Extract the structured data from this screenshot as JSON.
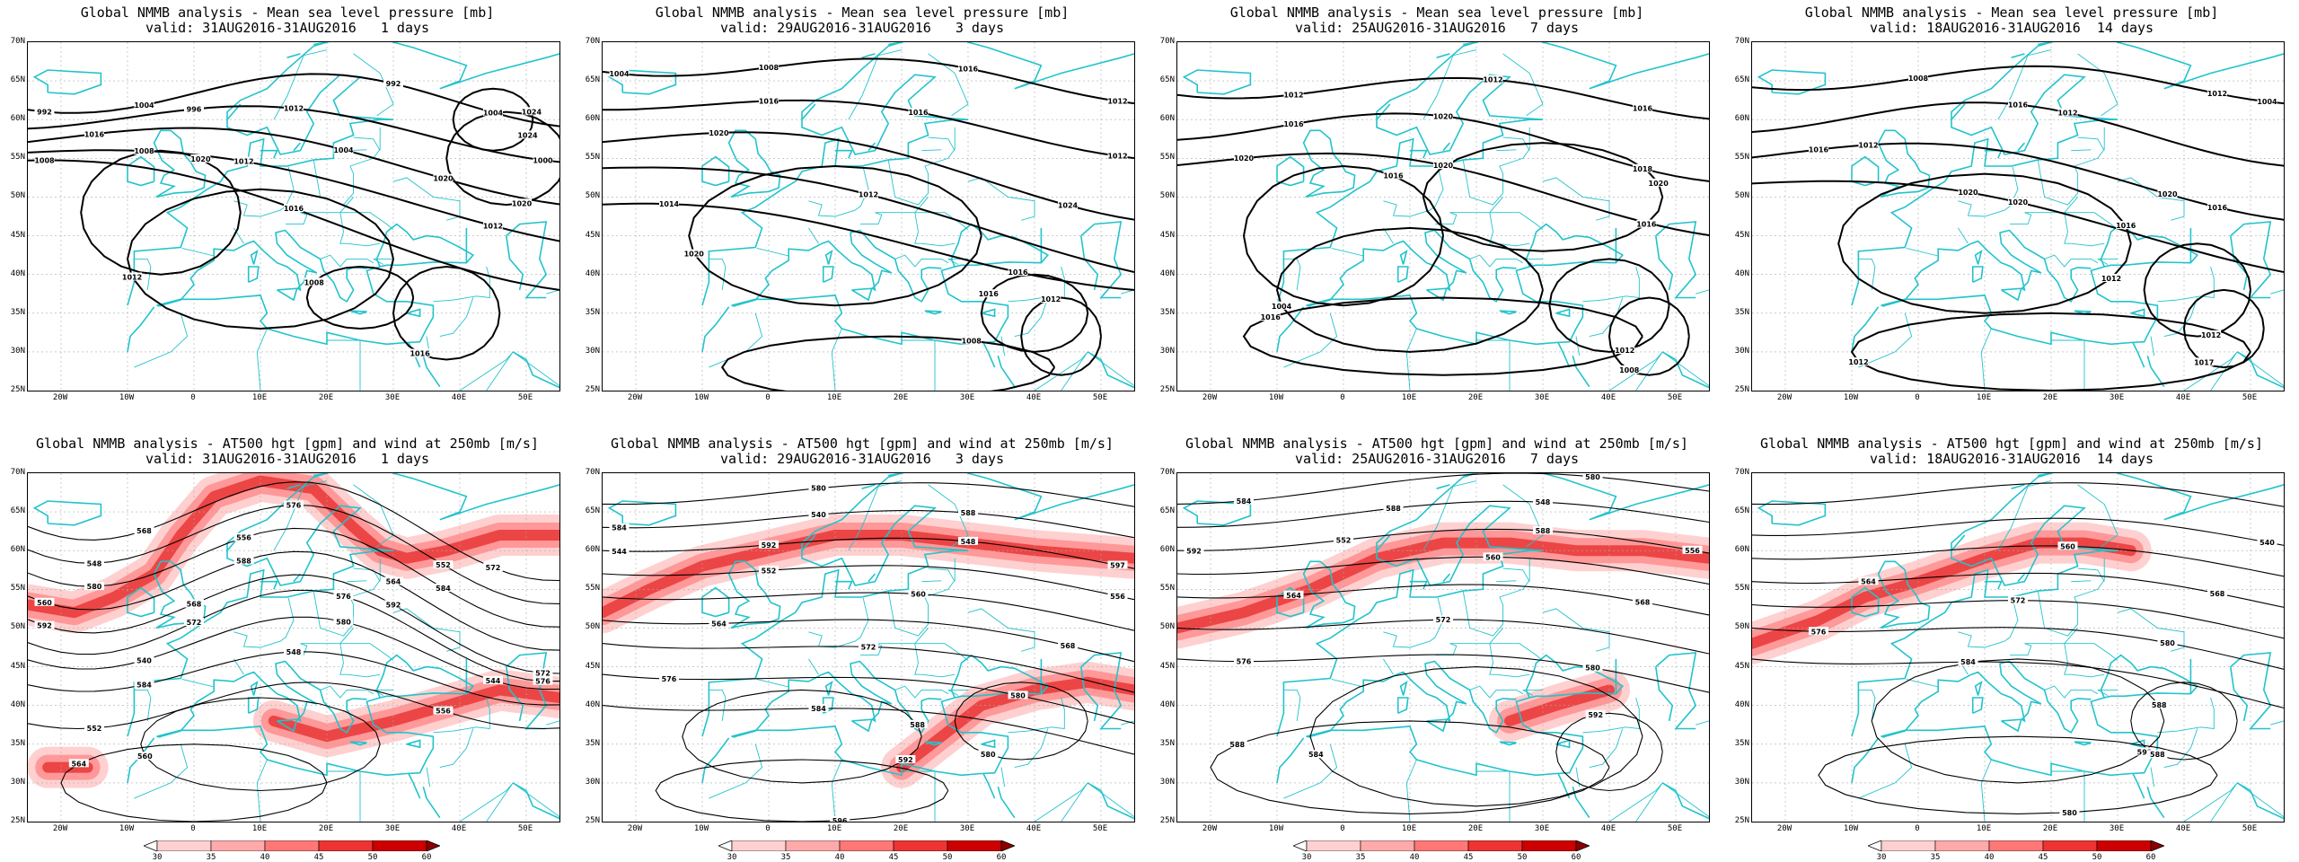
{
  "panels": [
    {
      "title": "Global NMMB analysis - Mean sea level pressure [mb]",
      "subtitle": "valid: 31AUG2016-31AUG2016   1 days",
      "field": "mslp",
      "contour_labels": [
        "992",
        "992",
        "996",
        "1000",
        "1004",
        "1008",
        "1012",
        "1016",
        "1020",
        "1024",
        "1024",
        "1020",
        "1016",
        "1012",
        "1008",
        "1004",
        "1004",
        "1012",
        "1016",
        "1020",
        "1012",
        "1008"
      ]
    },
    {
      "title": "Global NMMB analysis - Mean sea level pressure [mb]",
      "subtitle": "valid: 29AUG2016-31AUG2016   3 days",
      "field": "mslp",
      "contour_labels": [
        "1008",
        "1012",
        "1016",
        "1020",
        "1024",
        "1012",
        "1014",
        "1016",
        "1020",
        "1016",
        "1012",
        "1008",
        "1004",
        "1016",
        "1016",
        "1012"
      ]
    },
    {
      "title": "Global NMMB analysis - Mean sea level pressure [mb]",
      "subtitle": "valid: 25AUG2016-31AUG2016   7 days",
      "field": "mslp",
      "contour_labels": [
        "1012",
        "1016",
        "1018",
        "1020",
        "1016",
        "1020",
        "1016",
        "1012",
        "1008",
        "1004",
        "1016",
        "1012",
        "1016",
        "1020",
        "1020"
      ]
    },
    {
      "title": "Global NMMB analysis - Mean sea level pressure [mb]",
      "subtitle": "valid: 18AUG2016-31AUG2016  14 days",
      "field": "mslp",
      "contour_labels": [
        "1012",
        "1016",
        "1016",
        "1020",
        "1020",
        "1016",
        "1012",
        "1012",
        "1017",
        "1012",
        "1008",
        "1004",
        "1012",
        "1012",
        "1016",
        "1020"
      ]
    },
    {
      "title": "Global NMMB analysis - AT500 hgt [gpm] and wind at 250mb [m/s]",
      "subtitle": "valid: 31AUG2016-31AUG2016   1 days",
      "field": "h500",
      "contour_labels": [
        "548",
        "552",
        "556",
        "560",
        "564",
        "568",
        "572",
        "576",
        "540",
        "544",
        "548",
        "552",
        "556",
        "560",
        "564",
        "568",
        "572",
        "576",
        "580",
        "584",
        "588",
        "592",
        "592",
        "572",
        "576",
        "580",
        "584"
      ]
    },
    {
      "title": "Global NMMB analysis - AT500 hgt [gpm] and wind at 250mb [m/s]",
      "subtitle": "valid: 29AUG2016-31AUG2016   3 days",
      "field": "h500",
      "contour_labels": [
        "540",
        "544",
        "548",
        "552",
        "556",
        "560",
        "564",
        "568",
        "572",
        "576",
        "580",
        "584",
        "588",
        "592",
        "596",
        "580",
        "580",
        "584",
        "588",
        "592",
        "597"
      ]
    },
    {
      "title": "Global NMMB analysis - AT500 hgt [gpm] and wind at 250mb [m/s]",
      "subtitle": "valid: 25AUG2016-31AUG2016   7 days",
      "field": "h500",
      "contour_labels": [
        "548",
        "552",
        "556",
        "560",
        "564",
        "568",
        "572",
        "576",
        "580",
        "584",
        "588",
        "592",
        "584",
        "580",
        "588",
        "592",
        "588"
      ]
    },
    {
      "title": "Global NMMB analysis - AT500 hgt [gpm] and wind at 250mb [m/s]",
      "subtitle": "valid: 18AUG2016-31AUG2016  14 days",
      "field": "h500",
      "contour_labels": [
        "540",
        "560",
        "564",
        "568",
        "572",
        "576",
        "580",
        "584",
        "588",
        "592",
        "580",
        "588"
      ]
    }
  ],
  "axes": {
    "lat_labels": [
      "70N",
      "65N",
      "60N",
      "55N",
      "50N",
      "45N",
      "40N",
      "35N",
      "30N",
      "25N"
    ],
    "lon_labels": [
      "20W",
      "10W",
      "0",
      "10E",
      "20E",
      "30E",
      "40E",
      "50E"
    ]
  },
  "colorbar": {
    "labels": [
      "30",
      "35",
      "40",
      "45",
      "50",
      "60"
    ],
    "colors": [
      "#ffffff",
      "#ffd0d0",
      "#ffaaaa",
      "#ff7777",
      "#ee3333",
      "#cc0000",
      "#8b0000"
    ]
  },
  "colors": {
    "coast": "#22c3cc",
    "contour": "#000000",
    "grid": "#aaaaaa"
  }
}
